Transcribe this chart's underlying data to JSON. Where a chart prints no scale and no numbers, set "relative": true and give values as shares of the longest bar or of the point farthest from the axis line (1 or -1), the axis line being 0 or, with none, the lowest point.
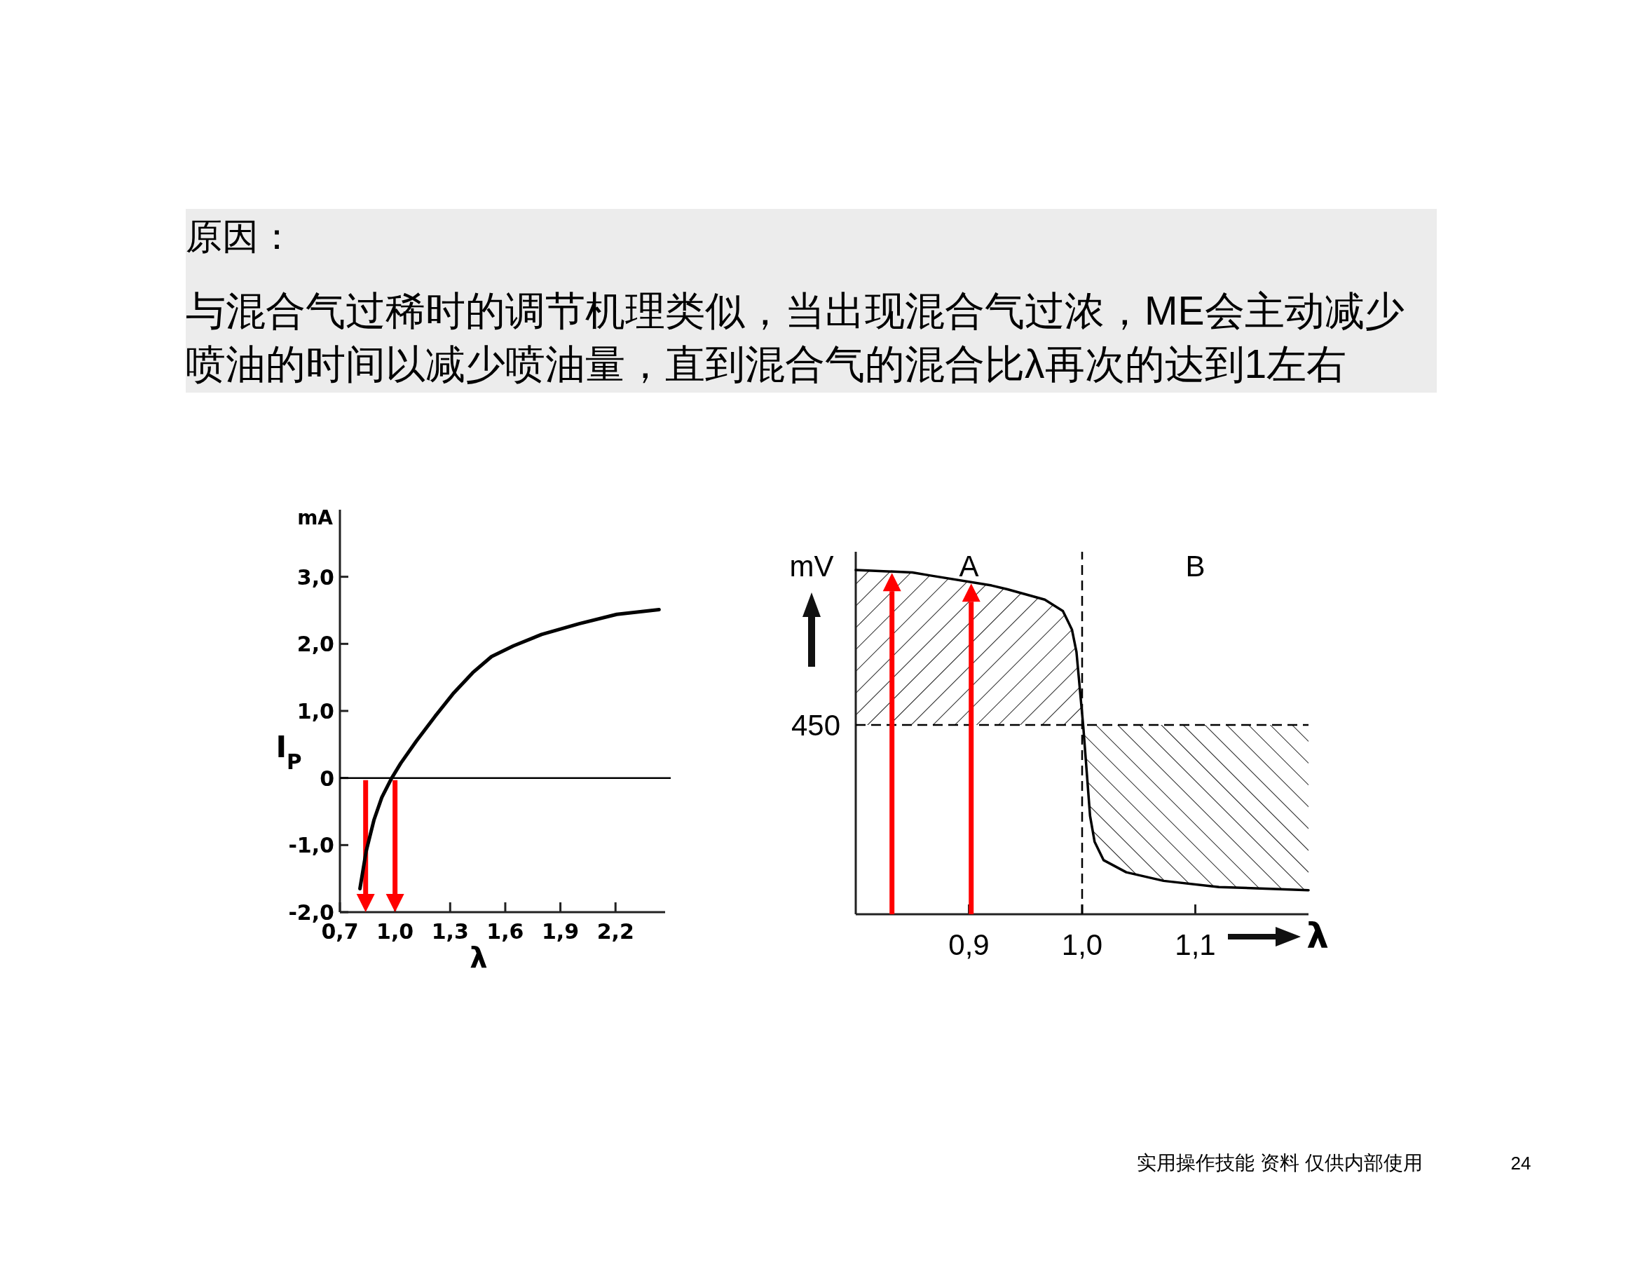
{
  "chart_data": [
    {
      "type": "line",
      "title": "原因：",
      "subtitle": "与混合气过稀时的调节机理类似，当出现混合气过浓，ME会主动减少喷油的时间以减少喷油量，直到混合气的混合比λ再次的达到1左右",
      "xlabel": "λ",
      "ylabel": "I$_{P}$",
      "annotations": [
        "mA"
      ],
      "xlim": [
        0.7,
        2.47
      ],
      "xticks": [
        {
          "value": 0.7,
          "label": "0,7"
        },
        {
          "value": 1.0,
          "label": "1,0"
        },
        {
          "value": 1.3,
          "label": "1,3"
        },
        {
          "value": 1.6,
          "label": "1,6"
        },
        {
          "value": 1.9,
          "label": "1,9"
        },
        {
          "value": 2.2,
          "label": "2,2"
        }
      ],
      "ylim": [
        -2,
        4
      ],
      "yticks": [
        {
          "value": -2,
          "label": "-2,0"
        },
        {
          "value": -1,
          "label": "-1,0"
        },
        0,
        {
          "value": 1,
          "label": "1,0"
        },
        {
          "value": 2,
          "label": "2,0"
        },
        {
          "value": 3,
          "label": "3,0"
        }
      ],
      "series": [
        {
          "color": "#000000",
          "x": [
            0.809,
            0.843,
            0.886,
            0.928,
            0.98,
            1.031,
            1.116,
            1.218,
            1.32,
            1.423,
            1.525,
            1.644,
            1.798,
            2.002,
            2.207,
            2.437
          ],
          "values": [
            -1.65,
            -1.09,
            -0.62,
            -0.29,
            -0.01,
            0.22,
            0.55,
            0.92,
            1.27,
            1.57,
            1.81,
            1.97,
            2.14,
            2.3,
            2.44,
            2.51
          ]
        }
      ],
      "ref_lines": [
        {
          "axis": "y",
          "value": 0,
          "color": "#000000"
        },
        {
          "axis": "x",
          "value": 0.84,
          "color": "#ff0000"
        },
        {
          "axis": "x",
          "value": 1.0,
          "color": "#ff0000"
        }
      ],
      "line_style": "solid",
      "marker": "none"
    },
    {
      "type": "line",
      "relative": true,
      "xlabel": "λ",
      "ylabel": "mV",
      "annotations": [
        "A",
        "B",
        "450",
        "实用操作技能 资料 仅供内部使用",
        "24"
      ],
      "xlim": [
        0.8,
        1.2
      ],
      "xticks": [
        {
          "value": 0.9,
          "label": "0,9"
        },
        {
          "value": 1.0,
          "label": "1,0"
        },
        {
          "value": 1.1,
          "label": "1,1"
        }
      ],
      "series": [
        {
          "color": "#000000",
          "x": [
            0.8,
            0.85,
            0.866,
            0.92,
            0.934,
            0.967,
            0.983,
            0.991,
            0.995,
            0.998,
            1.001,
            1.004,
            1.007,
            1.011,
            1.019,
            1.039,
            1.072,
            1.121,
            1.2
          ],
          "values": [
            1.0,
            0.993,
            0.984,
            0.955,
            0.944,
            0.914,
            0.881,
            0.827,
            0.762,
            0.654,
            0.546,
            0.416,
            0.286,
            0.211,
            0.157,
            0.122,
            0.097,
            0.079,
            0.07
          ],
          "lower": [
            0.55,
            0.55,
            0.55,
            0.55,
            0.55,
            0.55,
            0.55,
            0.55,
            0.55,
            0.55,
            0.546,
            0.416,
            0.286,
            0.211,
            0.157,
            0.122,
            0.097,
            0.079,
            0.07
          ],
          "upper": [
            1.0,
            0.993,
            0.984,
            0.955,
            0.944,
            0.914,
            0.881,
            0.827,
            0.762,
            0.654,
            0.55,
            0.55,
            0.55,
            0.55,
            0.55,
            0.55,
            0.55,
            0.55,
            0.55
          ]
        }
      ],
      "ref_lines": [
        {
          "axis": "x",
          "value": 1.0,
          "line_style": "dashed",
          "color": "#000000"
        },
        {
          "axis": "y",
          "value": 0.55,
          "line_style": "dashed",
          "color": "#000000"
        },
        {
          "axis": "x",
          "value": 0.832,
          "color": "#ff0000"
        },
        {
          "axis": "x",
          "value": 0.902,
          "color": "#ff0000"
        }
      ],
      "line_style": "solid",
      "marker": "none"
    }
  ]
}
